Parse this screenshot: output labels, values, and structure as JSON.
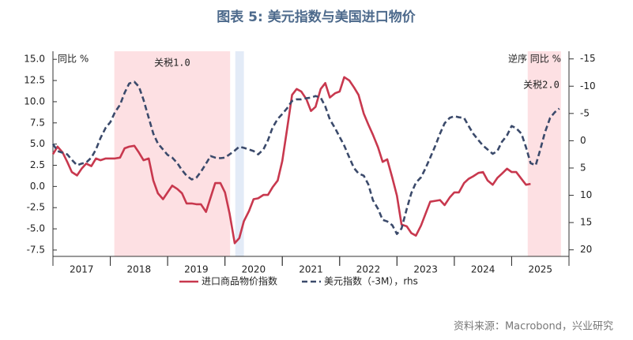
{
  "chart_data": {
    "type": "line",
    "title": "图表 5:  美元指数与美国进口物价",
    "y_label": "同比 %",
    "y2_label": "逆序  同比 %",
    "source": "资料来源：Macrobond，兴业研究",
    "xlim": [
      2017,
      2026
    ],
    "xticks": [
      {
        "value": 2017.5,
        "label": "2017"
      },
      {
        "value": 2018.5,
        "label": "2018"
      },
      {
        "value": 2019.5,
        "label": "2019"
      },
      {
        "value": 2020.5,
        "label": "2020"
      },
      {
        "value": 2021.5,
        "label": "2021"
      },
      {
        "value": 2022.5,
        "label": "2022"
      },
      {
        "value": 2023.5,
        "label": "2023"
      },
      {
        "value": 2024.5,
        "label": "2024"
      },
      {
        "value": 2025.5,
        "label": "2025"
      }
    ],
    "ylim": [
      -8.25,
      15.95
    ],
    "yticks": [
      {
        "value": 15,
        "label": "15.0"
      },
      12.5,
      {
        "value": 10,
        "label": "10.0"
      },
      7.5,
      {
        "value": 5,
        "label": "5.0"
      },
      2.5,
      {
        "value": 0,
        "label": "0.0"
      },
      -2.5,
      {
        "value": -5,
        "label": "-5.0"
      },
      -7.5
    ],
    "y2lim": [
      21.2,
      -16.4
    ],
    "y2ticks": [
      -15,
      -10,
      -5,
      0,
      5,
      10,
      15,
      20
    ],
    "shaded_regions": [
      {
        "start": 2018.07,
        "end": 2020.09,
        "color": "#fde0e3",
        "label": "关税1.0"
      },
      {
        "start": 2020.18,
        "end": 2020.33,
        "color": "#e3ebf7"
      },
      {
        "start": 2025.28,
        "end": 2025.86,
        "color": "#fde0e3",
        "label": "关税2.0"
      }
    ],
    "x": [
      2017,
      2017.08,
      2017.17,
      2017.25,
      2017.33,
      2017.42,
      2017.5,
      2017.58,
      2017.67,
      2017.75,
      2017.83,
      2017.92,
      2018,
      2018.08,
      2018.17,
      2018.25,
      2018.33,
      2018.42,
      2018.5,
      2018.58,
      2018.67,
      2018.75,
      2018.83,
      2018.92,
      2019,
      2019.08,
      2019.17,
      2019.25,
      2019.33,
      2019.42,
      2019.5,
      2019.58,
      2019.67,
      2019.75,
      2019.83,
      2019.92,
      2020,
      2020.08,
      2020.17,
      2020.25,
      2020.33,
      2020.42,
      2020.5,
      2020.58,
      2020.67,
      2020.75,
      2020.83,
      2020.92,
      2021,
      2021.08,
      2021.17,
      2021.25,
      2021.33,
      2021.42,
      2021.5,
      2021.58,
      2021.67,
      2021.75,
      2021.83,
      2021.92,
      2022,
      2022.08,
      2022.17,
      2022.25,
      2022.33,
      2022.42,
      2022.5,
      2022.58,
      2022.67,
      2022.75,
      2022.83,
      2022.92,
      2023,
      2023.08,
      2023.17,
      2023.25,
      2023.33,
      2023.42,
      2023.5,
      2023.58,
      2023.67,
      2023.75,
      2023.83,
      2023.92,
      2024,
      2024.08,
      2024.17,
      2024.25,
      2024.33,
      2024.42,
      2024.5,
      2024.58,
      2024.67,
      2024.75,
      2024.83,
      2024.92,
      2025,
      2025.08,
      2025.17,
      2025.25,
      2025.33,
      2025.42,
      2025.5,
      2025.58,
      2025.67,
      2025.75,
      2025.83
    ],
    "series": [
      {
        "name": "进口商品物价指数",
        "color": "#c8384e",
        "axis": "y",
        "values": [
          3.8,
          4.7,
          4.0,
          2.9,
          1.7,
          1.3,
          2.1,
          2.7,
          2.4,
          3.3,
          3.1,
          3.3,
          3.3,
          3.3,
          3.4,
          4.5,
          4.7,
          4.8,
          4.0,
          3.1,
          3.3,
          0.7,
          -0.8,
          -1.5,
          -0.7,
          0.1,
          -0.3,
          -0.8,
          -2.0,
          -2.0,
          -2.1,
          -2.1,
          -3.0,
          -1.3,
          0.4,
          0.4,
          -0.7,
          -3.2,
          -6.7,
          -6.1,
          -4.1,
          -2.9,
          -1.5,
          -1.4,
          -1.0,
          -1.0,
          -0.1,
          0.7,
          3.0,
          6.6,
          10.8,
          11.5,
          11.2,
          10.3,
          8.9,
          9.4,
          11.5,
          12.2,
          10.5,
          11.0,
          11.2,
          12.9,
          12.5,
          11.7,
          10.8,
          8.6,
          7.3,
          6.1,
          4.6,
          2.9,
          3.2,
          1.0,
          -1.1,
          -4.5,
          -4.7,
          -5.5,
          -5.8,
          -4.6,
          -3.2,
          -1.8,
          -1.7,
          -1.6,
          -2.2,
          -1.3,
          -0.7,
          -0.7,
          0.4,
          0.9,
          1.2,
          1.6,
          1.7,
          0.7,
          0.2,
          1.0,
          1.5,
          2.1,
          1.7,
          1.7,
          0.9,
          0.2,
          0.3,
          null,
          null,
          null,
          null,
          null,
          null
        ]
      },
      {
        "name": "美元指数（-3M），rhs",
        "color": "#3b4a6b",
        "axis": "y2",
        "dashed": true,
        "values": [
          0.6,
          1.9,
          2.2,
          2.5,
          3.5,
          4.5,
          4.2,
          4.0,
          3.1,
          1.6,
          -0.5,
          -2.4,
          -3.4,
          -5.2,
          -6.6,
          -8.8,
          -10.5,
          -10.8,
          -9.9,
          -7.5,
          -4.2,
          -1.3,
          0.5,
          1.6,
          2.6,
          3.1,
          4.1,
          5.4,
          6.4,
          7.1,
          6.8,
          5.7,
          4.2,
          2.8,
          3.1,
          3.2,
          3.1,
          2.5,
          1.8,
          1.1,
          1.3,
          1.6,
          1.9,
          2.5,
          1.6,
          -0.1,
          -2.4,
          -4.0,
          -4.9,
          -5.9,
          -7.3,
          -7.6,
          -7.6,
          -7.8,
          -7.9,
          -8.2,
          -7.9,
          -6.3,
          -3.9,
          -2.3,
          -0.7,
          0.9,
          3.1,
          5.0,
          6.0,
          6.4,
          8.0,
          10.9,
          12.5,
          14.5,
          14.8,
          15.5,
          17.1,
          16.1,
          12.5,
          9.6,
          7.7,
          6.7,
          5.0,
          3.1,
          0.9,
          -1.3,
          -3.2,
          -4.2,
          -4.5,
          -4.3,
          -4.2,
          -2.7,
          -1.3,
          -0.1,
          0.9,
          1.6,
          2.4,
          1.9,
          0.2,
          -1.0,
          -2.7,
          -2.3,
          -1.3,
          1.2,
          4.1,
          4.5,
          1.6,
          -1.5,
          -4.2,
          -5.2,
          -5.9
        ]
      }
    ]
  }
}
